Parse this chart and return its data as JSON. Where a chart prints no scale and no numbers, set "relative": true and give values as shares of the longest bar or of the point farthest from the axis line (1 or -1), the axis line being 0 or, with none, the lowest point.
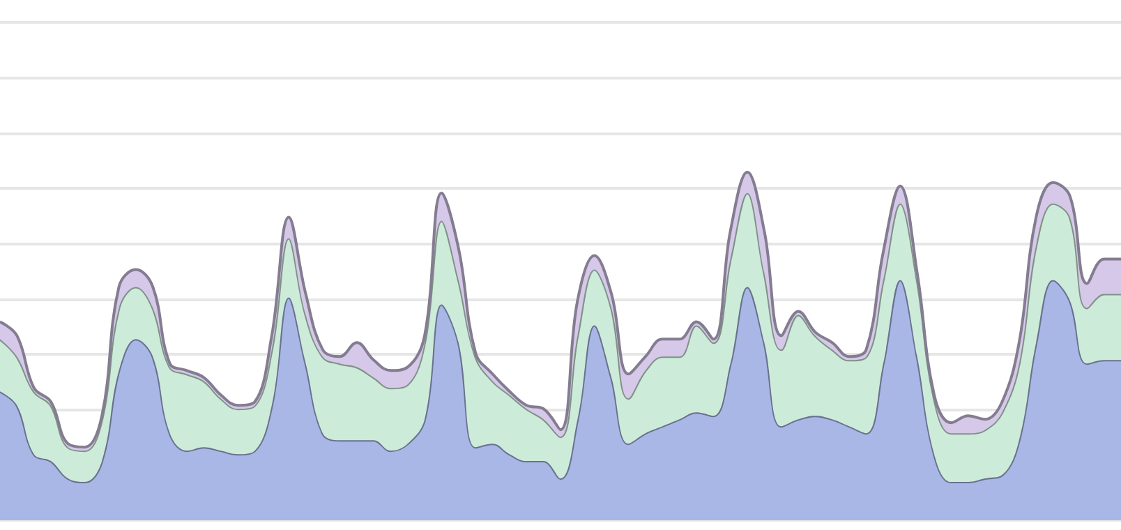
{
  "chart_data": {
    "type": "area",
    "stacked": true,
    "relative": true,
    "grid": "y",
    "tick_labels": false,
    "categories": [
      null,
      null,
      null,
      null,
      null,
      null,
      null,
      null,
      null,
      null,
      null,
      null,
      null,
      null,
      null,
      null,
      null,
      null,
      null,
      null,
      null,
      null,
      null,
      null,
      null,
      null,
      null,
      null,
      null,
      null,
      null,
      null,
      null,
      null,
      null,
      null,
      null,
      null,
      null,
      null,
      null,
      null,
      null,
      null,
      null,
      null,
      null,
      null,
      null,
      null,
      null,
      null,
      null,
      null,
      null,
      null,
      null,
      null,
      null,
      null,
      null,
      null,
      null,
      null,
      null,
      null,
      null
    ],
    "series": [
      {
        "color": "#a9b7e6",
        "values": [
          0.37,
          0.33,
          0.19,
          0.17,
          0.12,
          0.11,
          0.17,
          0.43,
          0.52,
          0.47,
          0.25,
          0.2,
          0.21,
          0.2,
          0.19,
          0.2,
          0.33,
          0.64,
          0.45,
          0.25,
          0.23,
          0.23,
          0.23,
          0.2,
          0.22,
          0.29,
          0.62,
          0.51,
          0.21,
          0.22,
          0.19,
          0.17,
          0.17,
          0.12,
          0.29,
          0.56,
          0.41,
          0.22,
          0.25,
          0.27,
          0.29,
          0.31,
          0.3,
          0.45,
          0.67,
          0.51,
          0.27,
          0.29,
          0.3,
          0.29,
          0.27,
          0.25,
          0.45,
          0.69,
          0.47,
          0.19,
          0.11,
          0.11,
          0.12,
          0.13,
          0.23,
          0.51,
          0.69,
          0.63,
          0.45,
          0.46,
          0.46
        ]
      },
      {
        "color": "#cdebd9",
        "values": [
          0.15,
          0.14,
          0.18,
          0.16,
          0.09,
          0.09,
          0.12,
          0.18,
          0.15,
          0.14,
          0.19,
          0.22,
          0.19,
          0.15,
          0.13,
          0.13,
          0.16,
          0.17,
          0.14,
          0.22,
          0.22,
          0.21,
          0.18,
          0.18,
          0.17,
          0.22,
          0.24,
          0.18,
          0.26,
          0.18,
          0.17,
          0.15,
          0.12,
          0.12,
          0.24,
          0.16,
          0.2,
          0.13,
          0.18,
          0.2,
          0.18,
          0.25,
          0.21,
          0.3,
          0.27,
          0.2,
          0.22,
          0.3,
          0.23,
          0.2,
          0.19,
          0.22,
          0.24,
          0.22,
          0.22,
          0.16,
          0.14,
          0.14,
          0.14,
          0.18,
          0.22,
          0.28,
          0.22,
          0.24,
          0.16,
          0.19,
          0.19
        ]
      },
      {
        "color": "#d5c8e8",
        "values": [
          0.05,
          0.06,
          0.01,
          0.01,
          0.01,
          0.01,
          0.01,
          0.06,
          0.05,
          0.06,
          0.01,
          0.01,
          0.01,
          0.01,
          0.01,
          0.01,
          0.04,
          0.06,
          0.06,
          0.02,
          0.02,
          0.07,
          0.05,
          0.05,
          0.05,
          0.02,
          0.08,
          0.09,
          0.01,
          0.02,
          0.01,
          0.01,
          0.03,
          0.02,
          0.1,
          0.04,
          0.04,
          0.07,
          0.04,
          0.05,
          0.05,
          0.01,
          0.01,
          0.08,
          0.06,
          0.12,
          0.04,
          0.01,
          0.01,
          0.02,
          0.01,
          0.02,
          0.08,
          0.05,
          0.02,
          0.01,
          0.03,
          0.05,
          0.03,
          0.03,
          0.06,
          0.08,
          0.06,
          0.06,
          0.07,
          0.1,
          0.1
        ]
      }
    ]
  }
}
